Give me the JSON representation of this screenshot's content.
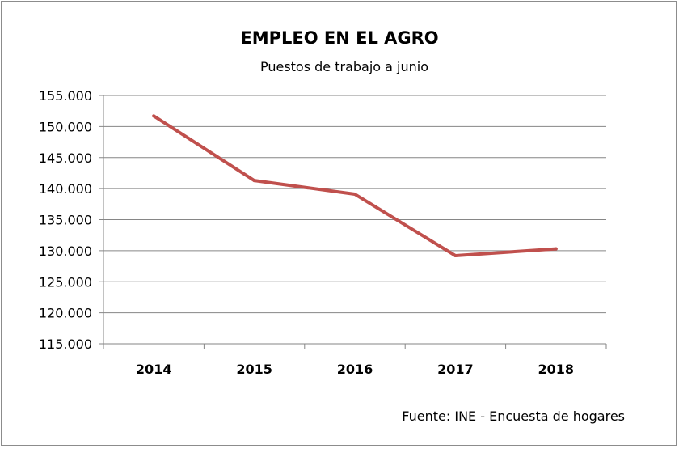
{
  "chart_data": {
    "type": "line",
    "title": "EMPLEO EN EL AGRO",
    "subtitle": "Puestos de trabajo a junio",
    "source": "Fuente: INE - Encuesta de hogares",
    "xlabel": "",
    "ylabel": "",
    "categories": [
      "2014",
      "2015",
      "2016",
      "2017",
      "2018"
    ],
    "series": [
      {
        "name": "Puestos de trabajo",
        "values": [
          151700,
          141300,
          139100,
          129200,
          130300
        ],
        "color": "#c0504d"
      }
    ],
    "ylim": [
      115000,
      155000
    ],
    "yticks": [
      115000,
      120000,
      125000,
      130000,
      135000,
      140000,
      145000,
      150000,
      155000
    ],
    "ytick_labels": [
      "115.000",
      "120.000",
      "125.000",
      "130.000",
      "135.000",
      "140.000",
      "145.000",
      "150.000",
      "155.000"
    ],
    "grid": true,
    "legend": "none"
  }
}
